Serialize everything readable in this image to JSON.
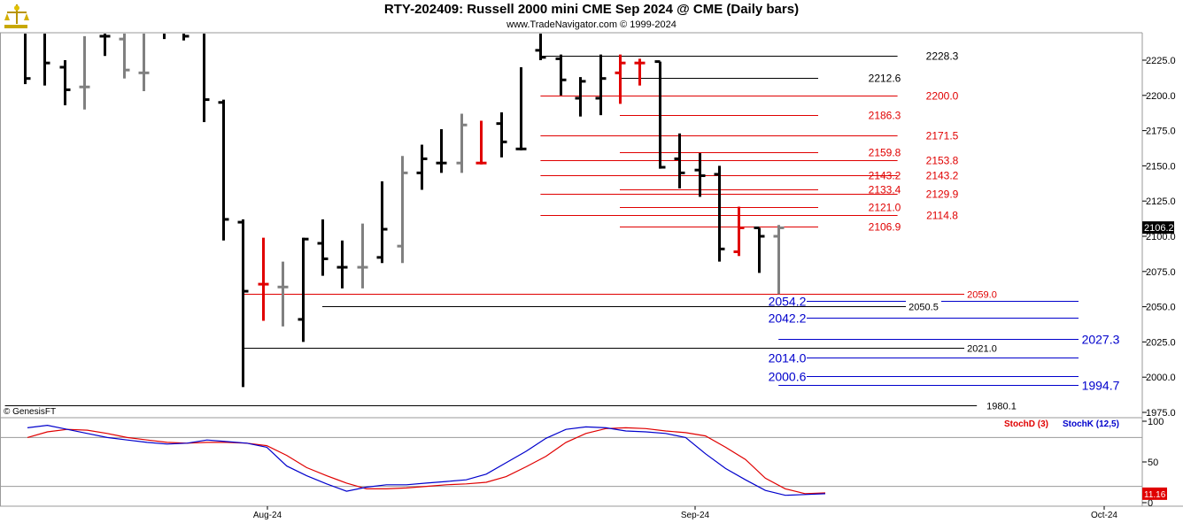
{
  "header": {
    "title": "RTY-202409:  Russell 2000 mini CME Sep 2024 @ CME  (Daily bars)",
    "subtitle": "www.TradeNavigator.com © 1999-2024",
    "watermark": "© GenesisFT"
  },
  "colors": {
    "up_bar": "#000000",
    "down_bar": "#808080",
    "highlight_bar": "#e00000",
    "red_line": "#e00000",
    "blue_line": "#0000cc",
    "stoch_d": "#e00000",
    "stoch_k": "#0000cc",
    "last_price_bg": "#000000",
    "stoch_value_bg": "#e00000"
  },
  "chart_data": {
    "type": "bar",
    "title": "RTY-202409:  Russell 2000 mini CME Sep 2024 @ CME  (Daily bars)",
    "y_axis": {
      "range": [
        1975,
        2240
      ],
      "ticks": [
        "2225.0",
        "2200.0",
        "2175.0",
        "2150.0",
        "2125.0",
        "2100.0",
        "2075.0",
        "2050.0",
        "2025.0",
        "2000.0",
        "1975.0"
      ],
      "tick_values": [
        2225,
        2200,
        2175,
        2150,
        2125,
        2100,
        2075,
        2050,
        2025,
        2000,
        1975
      ],
      "last_price_label": "2106.2",
      "last_price": 2106.2
    },
    "x_axis": {
      "labels": [
        "Aug-24",
        "Sep-24",
        "Oct-24"
      ]
    },
    "bars": [
      {
        "h": 2250,
        "l": 2208,
        "c": 2212,
        "o": 2250,
        "color": "black"
      },
      {
        "h": 2250,
        "l": 2207,
        "c": 2223,
        "o": 2250,
        "color": "black"
      },
      {
        "h": 2225,
        "l": 2193,
        "c": 2204,
        "o": 2220,
        "color": "black"
      },
      {
        "h": 2242,
        "l": 2190,
        "c": 2206,
        "o": 2206,
        "color": "gray"
      },
      {
        "h": 2245,
        "l": 2228,
        "c": 2242,
        "o": 2242,
        "color": "black"
      },
      {
        "h": 2248,
        "l": 2212,
        "c": 2218,
        "o": 2240,
        "color": "gray"
      },
      {
        "h": 2245,
        "l": 2203,
        "c": 2216,
        "o": 2216,
        "color": "gray"
      },
      {
        "h": 2245,
        "l": 2240,
        "c": 2244,
        "o": 2245,
        "color": "black"
      },
      {
        "h": 2250,
        "l": 2239,
        "c": 2242,
        "o": 2245,
        "color": "black"
      },
      {
        "h": 2250,
        "l": 2181,
        "c": 2197,
        "o": 2250,
        "color": "black"
      },
      {
        "h": 2197,
        "l": 2097,
        "c": 2112,
        "o": 2195,
        "color": "black"
      },
      {
        "h": 2112,
        "l": 1993,
        "c": 2061,
        "o": 2110,
        "color": "black"
      },
      {
        "h": 2099,
        "l": 2040,
        "c": 2066,
        "o": 2066,
        "color": "red"
      },
      {
        "h": 2082,
        "l": 2036,
        "c": 2064,
        "o": 2064,
        "color": "gray"
      },
      {
        "h": 2099,
        "l": 2025,
        "c": 2098,
        "o": 2041,
        "color": "black"
      },
      {
        "h": 2112,
        "l": 2072,
        "c": 2084,
        "o": 2095,
        "color": "black"
      },
      {
        "h": 2097,
        "l": 2063,
        "c": 2078,
        "o": 2078,
        "color": "black"
      },
      {
        "h": 2109,
        "l": 2063,
        "c": 2078,
        "o": 2078,
        "color": "gray"
      },
      {
        "h": 2139,
        "l": 2081,
        "c": 2105,
        "o": 2085,
        "color": "black"
      },
      {
        "h": 2157,
        "l": 2081,
        "c": 2145,
        "o": 2093,
        "color": "gray"
      },
      {
        "h": 2165,
        "l": 2133,
        "c": 2155,
        "o": 2145,
        "color": "black"
      },
      {
        "h": 2176,
        "l": 2145,
        "c": 2152,
        "o": 2152,
        "color": "black"
      },
      {
        "h": 2187,
        "l": 2145,
        "c": 2179,
        "o": 2152,
        "color": "gray"
      },
      {
        "h": 2182,
        "l": 2151,
        "c": 2152,
        "o": 2152,
        "color": "red"
      },
      {
        "h": 2188,
        "l": 2156,
        "c": 2167,
        "o": 2180,
        "color": "black"
      },
      {
        "h": 2220,
        "l": 2161,
        "c": 2162,
        "o": 2162,
        "color": "black"
      },
      {
        "h": 2245,
        "l": 2225,
        "c": 2227,
        "o": 2232,
        "color": "black"
      },
      {
        "h": 2229,
        "l": 2200,
        "c": 2211,
        "o": 2226,
        "color": "black"
      },
      {
        "h": 2213,
        "l": 2185,
        "c": 2210,
        "o": 2198,
        "color": "black"
      },
      {
        "h": 2229,
        "l": 2186,
        "c": 2212,
        "o": 2198,
        "color": "black"
      },
      {
        "h": 2229,
        "l": 2194,
        "c": 2223,
        "o": 2216,
        "color": "red"
      },
      {
        "h": 2226,
        "l": 2207,
        "c": 2223,
        "o": 2223,
        "color": "red"
      },
      {
        "h": 2224,
        "l": 2148,
        "c": 2149,
        "o": 2224,
        "color": "black"
      },
      {
        "h": 2173,
        "l": 2134,
        "c": 2145,
        "o": 2155,
        "color": "black"
      },
      {
        "h": 2159,
        "l": 2128,
        "c": 2143,
        "o": 2147,
        "color": "black"
      },
      {
        "h": 2150,
        "l": 2082,
        "c": 2091,
        "o": 2144,
        "color": "black"
      },
      {
        "h": 2121,
        "l": 2086,
        "c": 2106,
        "o": 2089,
        "color": "red"
      },
      {
        "h": 2106,
        "l": 2074,
        "c": 2100,
        "o": 2106,
        "color": "black"
      },
      {
        "h": 2108,
        "l": 2059,
        "c": 2106,
        "o": 2100,
        "color": "gray"
      }
    ],
    "levels": [
      {
        "value": 2228.3,
        "label": "2228.3",
        "color": "black",
        "from": 26,
        "to": 44
      },
      {
        "value": 2212.6,
        "label": "2212.6",
        "color": "black",
        "from": 30,
        "to": 40
      },
      {
        "value": 2200.0,
        "label": "2200.0",
        "color": "red",
        "from": 26,
        "to": 44
      },
      {
        "value": 2186.3,
        "label": "2186.3",
        "color": "red",
        "from": 30,
        "to": 40
      },
      {
        "value": 2171.5,
        "label": "2171.5",
        "color": "red",
        "from": 26,
        "to": 44
      },
      {
        "value": 2159.8,
        "label": "2159.8",
        "color": "red",
        "from": 30,
        "to": 40
      },
      {
        "value": 2153.8,
        "label": "2153.8",
        "color": "red",
        "from": 26,
        "to": 44
      },
      {
        "value": 2143.2,
        "label": "2143.2",
        "color": "red",
        "from": 26,
        "to": 40
      },
      {
        "value": 2143.2,
        "label": "2143.2",
        "color": "red",
        "from": 38,
        "to": 44
      },
      {
        "value": 2133.4,
        "label": "2133.4",
        "color": "red",
        "from": 30,
        "to": 40
      },
      {
        "value": 2129.9,
        "label": "2129.9",
        "color": "red",
        "from": 26,
        "to": 44
      },
      {
        "value": 2121.0,
        "label": "2121.0",
        "color": "red",
        "from": 30,
        "to": 40
      },
      {
        "value": 2114.8,
        "label": "2114.8",
        "color": "red",
        "from": 26,
        "to": 44
      },
      {
        "value": 2106.9,
        "label": "2106.9",
        "color": "red",
        "from": 30,
        "to": 40
      },
      {
        "value": 2059.0,
        "label": "2059.0",
        "color": "red",
        "from": 11,
        "to": 49
      },
      {
        "value": 2054.2,
        "label": "2054.2",
        "color": "blue",
        "from": 38,
        "to": 54
      },
      {
        "value": 2050.5,
        "label": "2050.5",
        "color": "black",
        "from": 15,
        "to": 45
      },
      {
        "value": 2042.2,
        "label": "2042.2",
        "color": "blue",
        "from": 38,
        "to": 54
      },
      {
        "value": 2027.3,
        "label": "2027.3",
        "color": "blue",
        "from": 38,
        "to": 54
      },
      {
        "value": 2021.0,
        "label": "2021.0",
        "color": "black",
        "from": 11,
        "to": 49
      },
      {
        "value": 2014.0,
        "label": "2014.0",
        "color": "blue",
        "from": 38,
        "to": 54
      },
      {
        "value": 2000.6,
        "label": "2000.6",
        "color": "blue",
        "from": 38,
        "to": 54
      },
      {
        "value": 1994.7,
        "label": "1994.7",
        "color": "blue",
        "from": 38,
        "to": 54
      },
      {
        "value": 1980.1,
        "label": "1980.1",
        "color": "black",
        "from": -1,
        "to": 48
      }
    ],
    "stochastic": {
      "range": [
        0,
        100
      ],
      "ticks": [
        "100",
        "50",
        "0"
      ],
      "tick_values": [
        100,
        50,
        0
      ],
      "guide_levels": [
        80,
        20
      ],
      "legend": [
        "StochD (3)",
        "StochK (12,5)"
      ],
      "last_value_label": "11.16",
      "stoch_d": [
        80,
        87,
        90,
        89,
        85,
        80,
        77,
        74,
        73,
        74,
        74,
        73,
        70,
        58,
        43,
        33,
        24,
        17,
        17,
        18,
        20,
        22,
        23,
        25,
        32,
        44,
        57,
        74,
        85,
        91,
        92,
        91,
        88,
        86,
        82,
        68,
        53,
        30,
        17,
        11,
        12
      ],
      "stoch_k": [
        92,
        95,
        90,
        85,
        80,
        77,
        74,
        72,
        73,
        77,
        75,
        73,
        68,
        45,
        33,
        23,
        14,
        19,
        22,
        22,
        24,
        26,
        28,
        35,
        49,
        63,
        79,
        90,
        93,
        92,
        88,
        87,
        85,
        80,
        60,
        42,
        28,
        15,
        9,
        10,
        11
      ]
    }
  }
}
